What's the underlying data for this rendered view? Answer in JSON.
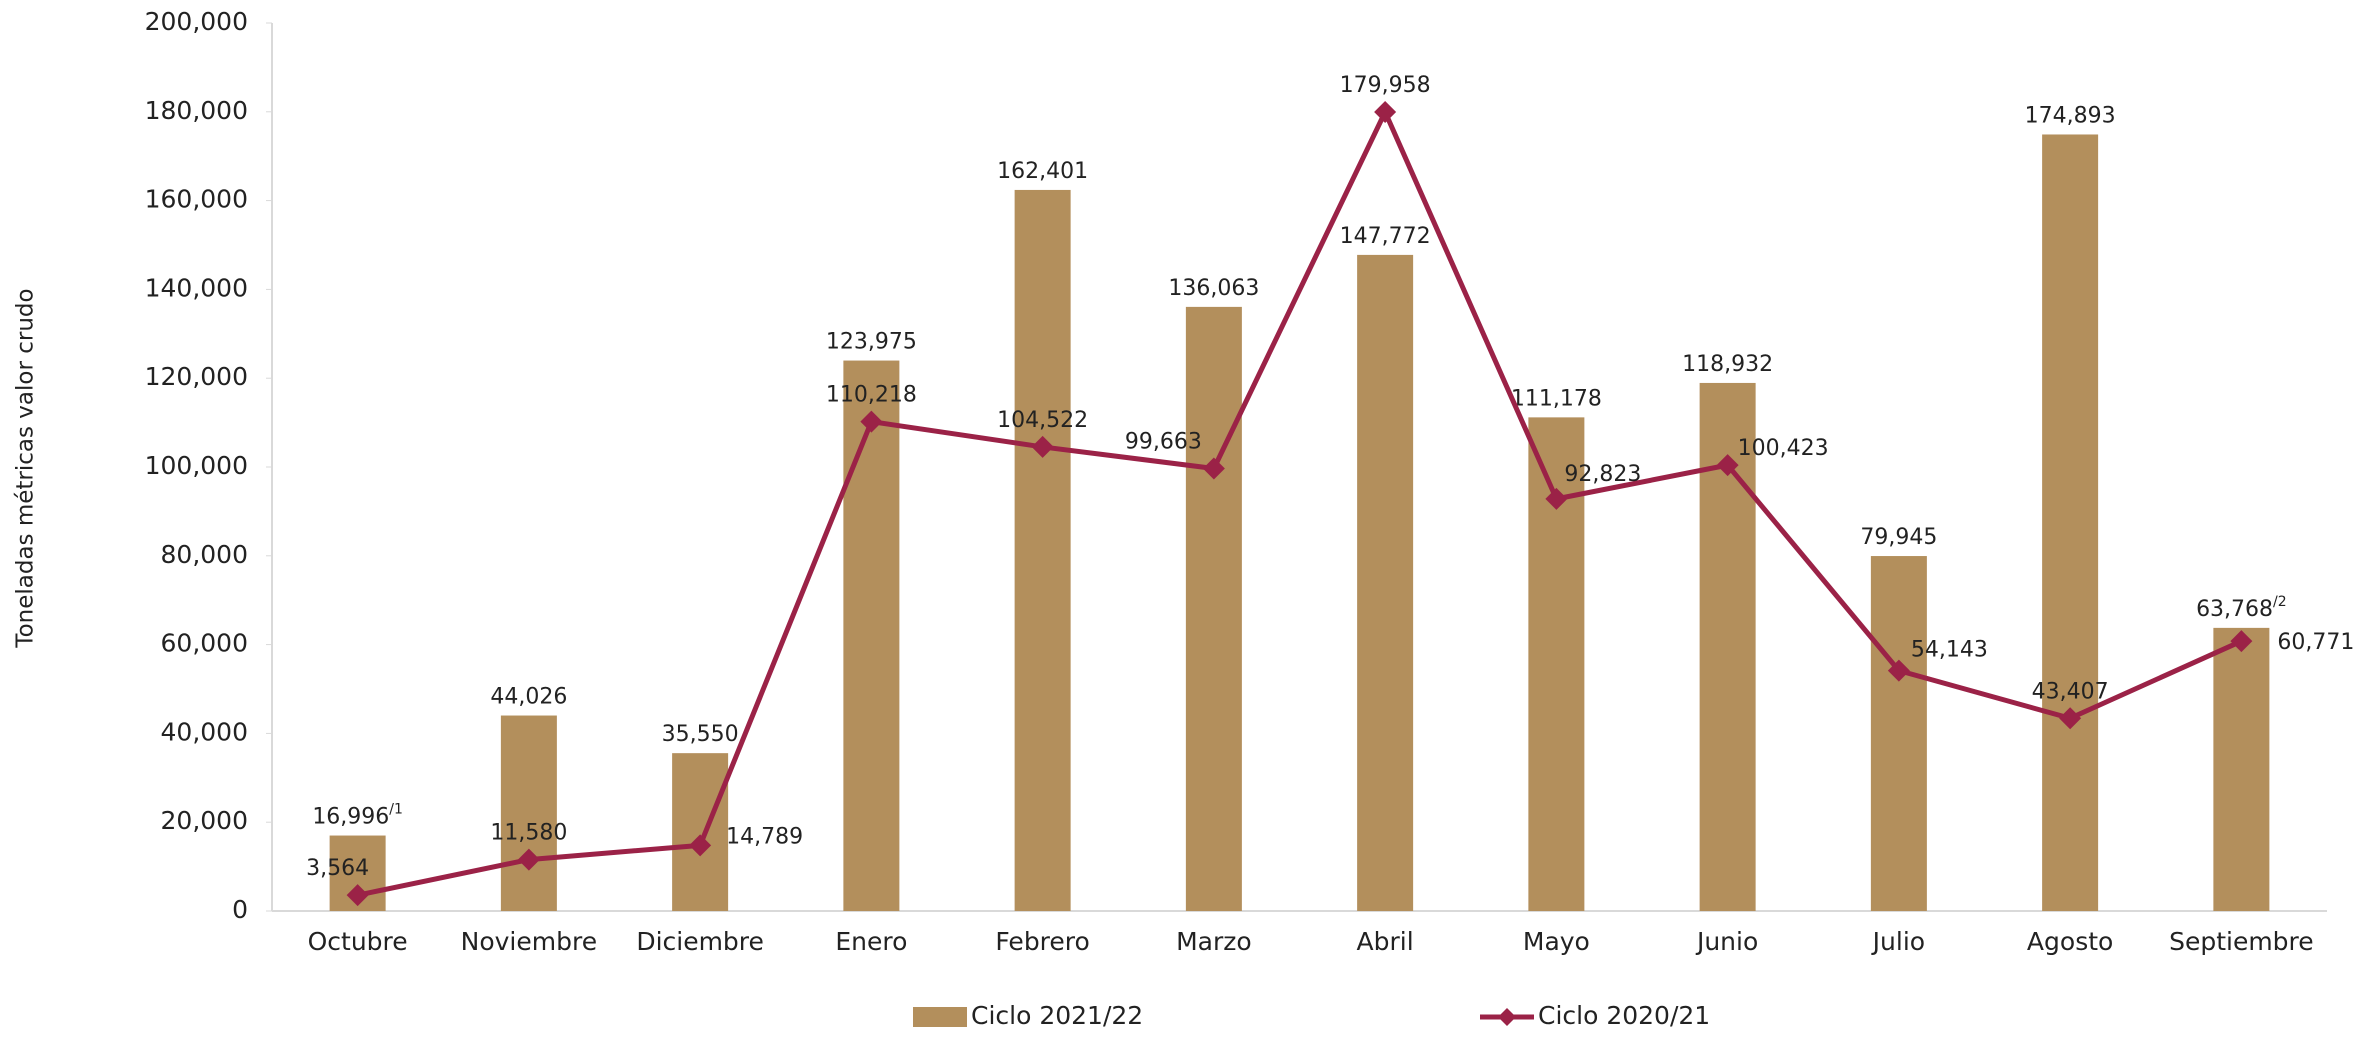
{
  "chart_data": {
    "type": "bar_line",
    "y_label": "Toneladas métricas valor crudo",
    "categories": [
      "Octubre",
      "Noviembre",
      "Diciembre",
      "Enero",
      "Febrero",
      "Marzo",
      "Abril",
      "Mayo",
      "Junio",
      "Julio",
      "Agosto",
      "Septiembre"
    ],
    "series": [
      {
        "name": "Ciclo 2021/22",
        "type": "bar",
        "color": "#b38f5c",
        "values": [
          16996,
          44026,
          35550,
          123975,
          162401,
          136063,
          147772,
          111178,
          118932,
          79945,
          174893,
          63768
        ],
        "value_labels": [
          "16,996",
          "44,026",
          "35,550",
          "123,975",
          "162,401",
          "136,063",
          "147,772",
          "111,178",
          "118,932",
          "79,945",
          "174,893",
          "63,768"
        ],
        "label_notes": [
          "/1",
          null,
          null,
          null,
          null,
          null,
          null,
          null,
          null,
          null,
          null,
          "/2"
        ]
      },
      {
        "name": "Ciclo 2020/21",
        "type": "line",
        "color": "#9b2247",
        "values": [
          3564,
          11580,
          14789,
          110218,
          104522,
          99663,
          179958,
          92823,
          100423,
          54143,
          43407,
          60771
        ],
        "value_labels": [
          "3,564",
          "11,580",
          "14,789",
          "110,218",
          "104,522",
          "99,663",
          "179,958",
          "92,823",
          "100,423",
          "54,143",
          "43,407",
          "60,771"
        ]
      }
    ],
    "ylim": [
      0,
      200000
    ],
    "yticks": [
      0,
      {
        "value": 20000,
        "label": "20,000"
      },
      {
        "value": 40000,
        "label": "40,000"
      },
      {
        "value": 60000,
        "label": "60,000"
      },
      {
        "value": 80000,
        "label": "80,000"
      },
      {
        "value": 100000,
        "label": "100,000"
      },
      {
        "value": 120000,
        "label": "120,000"
      },
      {
        "value": 140000,
        "label": "140,000"
      },
      {
        "value": 160000,
        "label": "160,000"
      },
      {
        "value": 180000,
        "label": "180,000"
      },
      {
        "value": 200000,
        "label": "200,000"
      }
    ],
    "grid": false,
    "legend": "bottom"
  }
}
